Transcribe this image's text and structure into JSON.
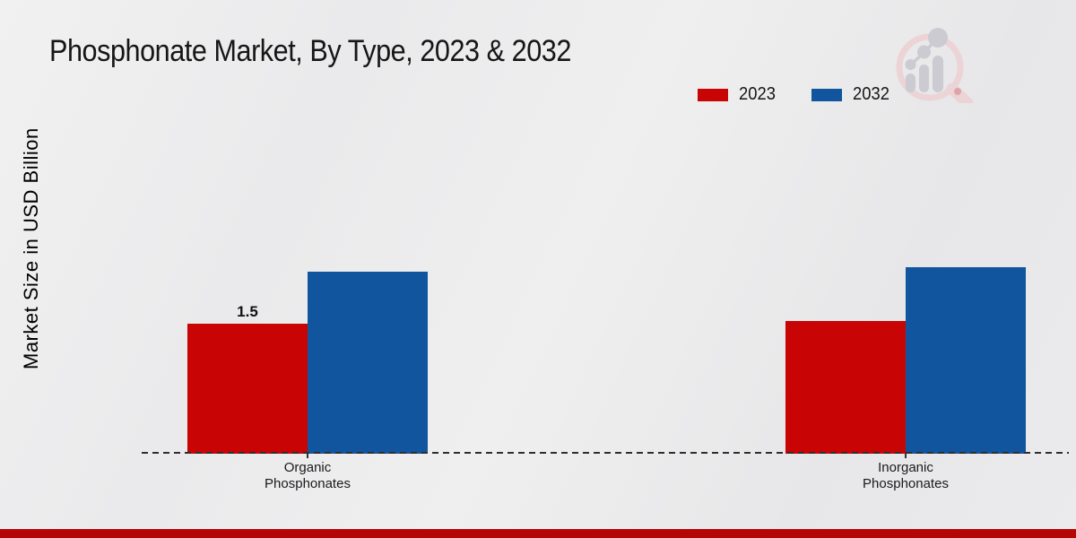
{
  "header": {
    "title": "Phosphonate Market, By Type, 2023 & 2032"
  },
  "icons": {
    "logo": "magnifier-bar-chart-watermark-icon"
  },
  "colors": {
    "series_2023": "#c90404",
    "series_2032": "#10559e",
    "footer_stripe": "#b50606",
    "baseline": "#2e2e2e",
    "background": "#ebebed"
  },
  "footer": {},
  "chart_data": {
    "type": "bar",
    "title": "Phosphonate Market, By Type, 2023 & 2032",
    "ylabel": "Market Size in USD Billion",
    "xlabel": "",
    "categories": [
      "Organic Phosphonates",
      "Inorganic Phosphonates"
    ],
    "categories_lines": [
      [
        "Organic",
        "Phosphonates"
      ],
      [
        "Inorganic",
        "Phosphonates"
      ]
    ],
    "series": [
      {
        "name": "2023",
        "color": "#c90404",
        "values": [
          1.5,
          1.53
        ],
        "labels": [
          "1.5",
          ""
        ]
      },
      {
        "name": "2032",
        "color": "#10559e",
        "values": [
          2.1,
          2.15
        ],
        "labels": [
          "",
          ""
        ]
      }
    ],
    "grid": false,
    "legend_position": "top-right",
    "baseline_style": "dashed",
    "y_axis_ticks_visible": false
  }
}
